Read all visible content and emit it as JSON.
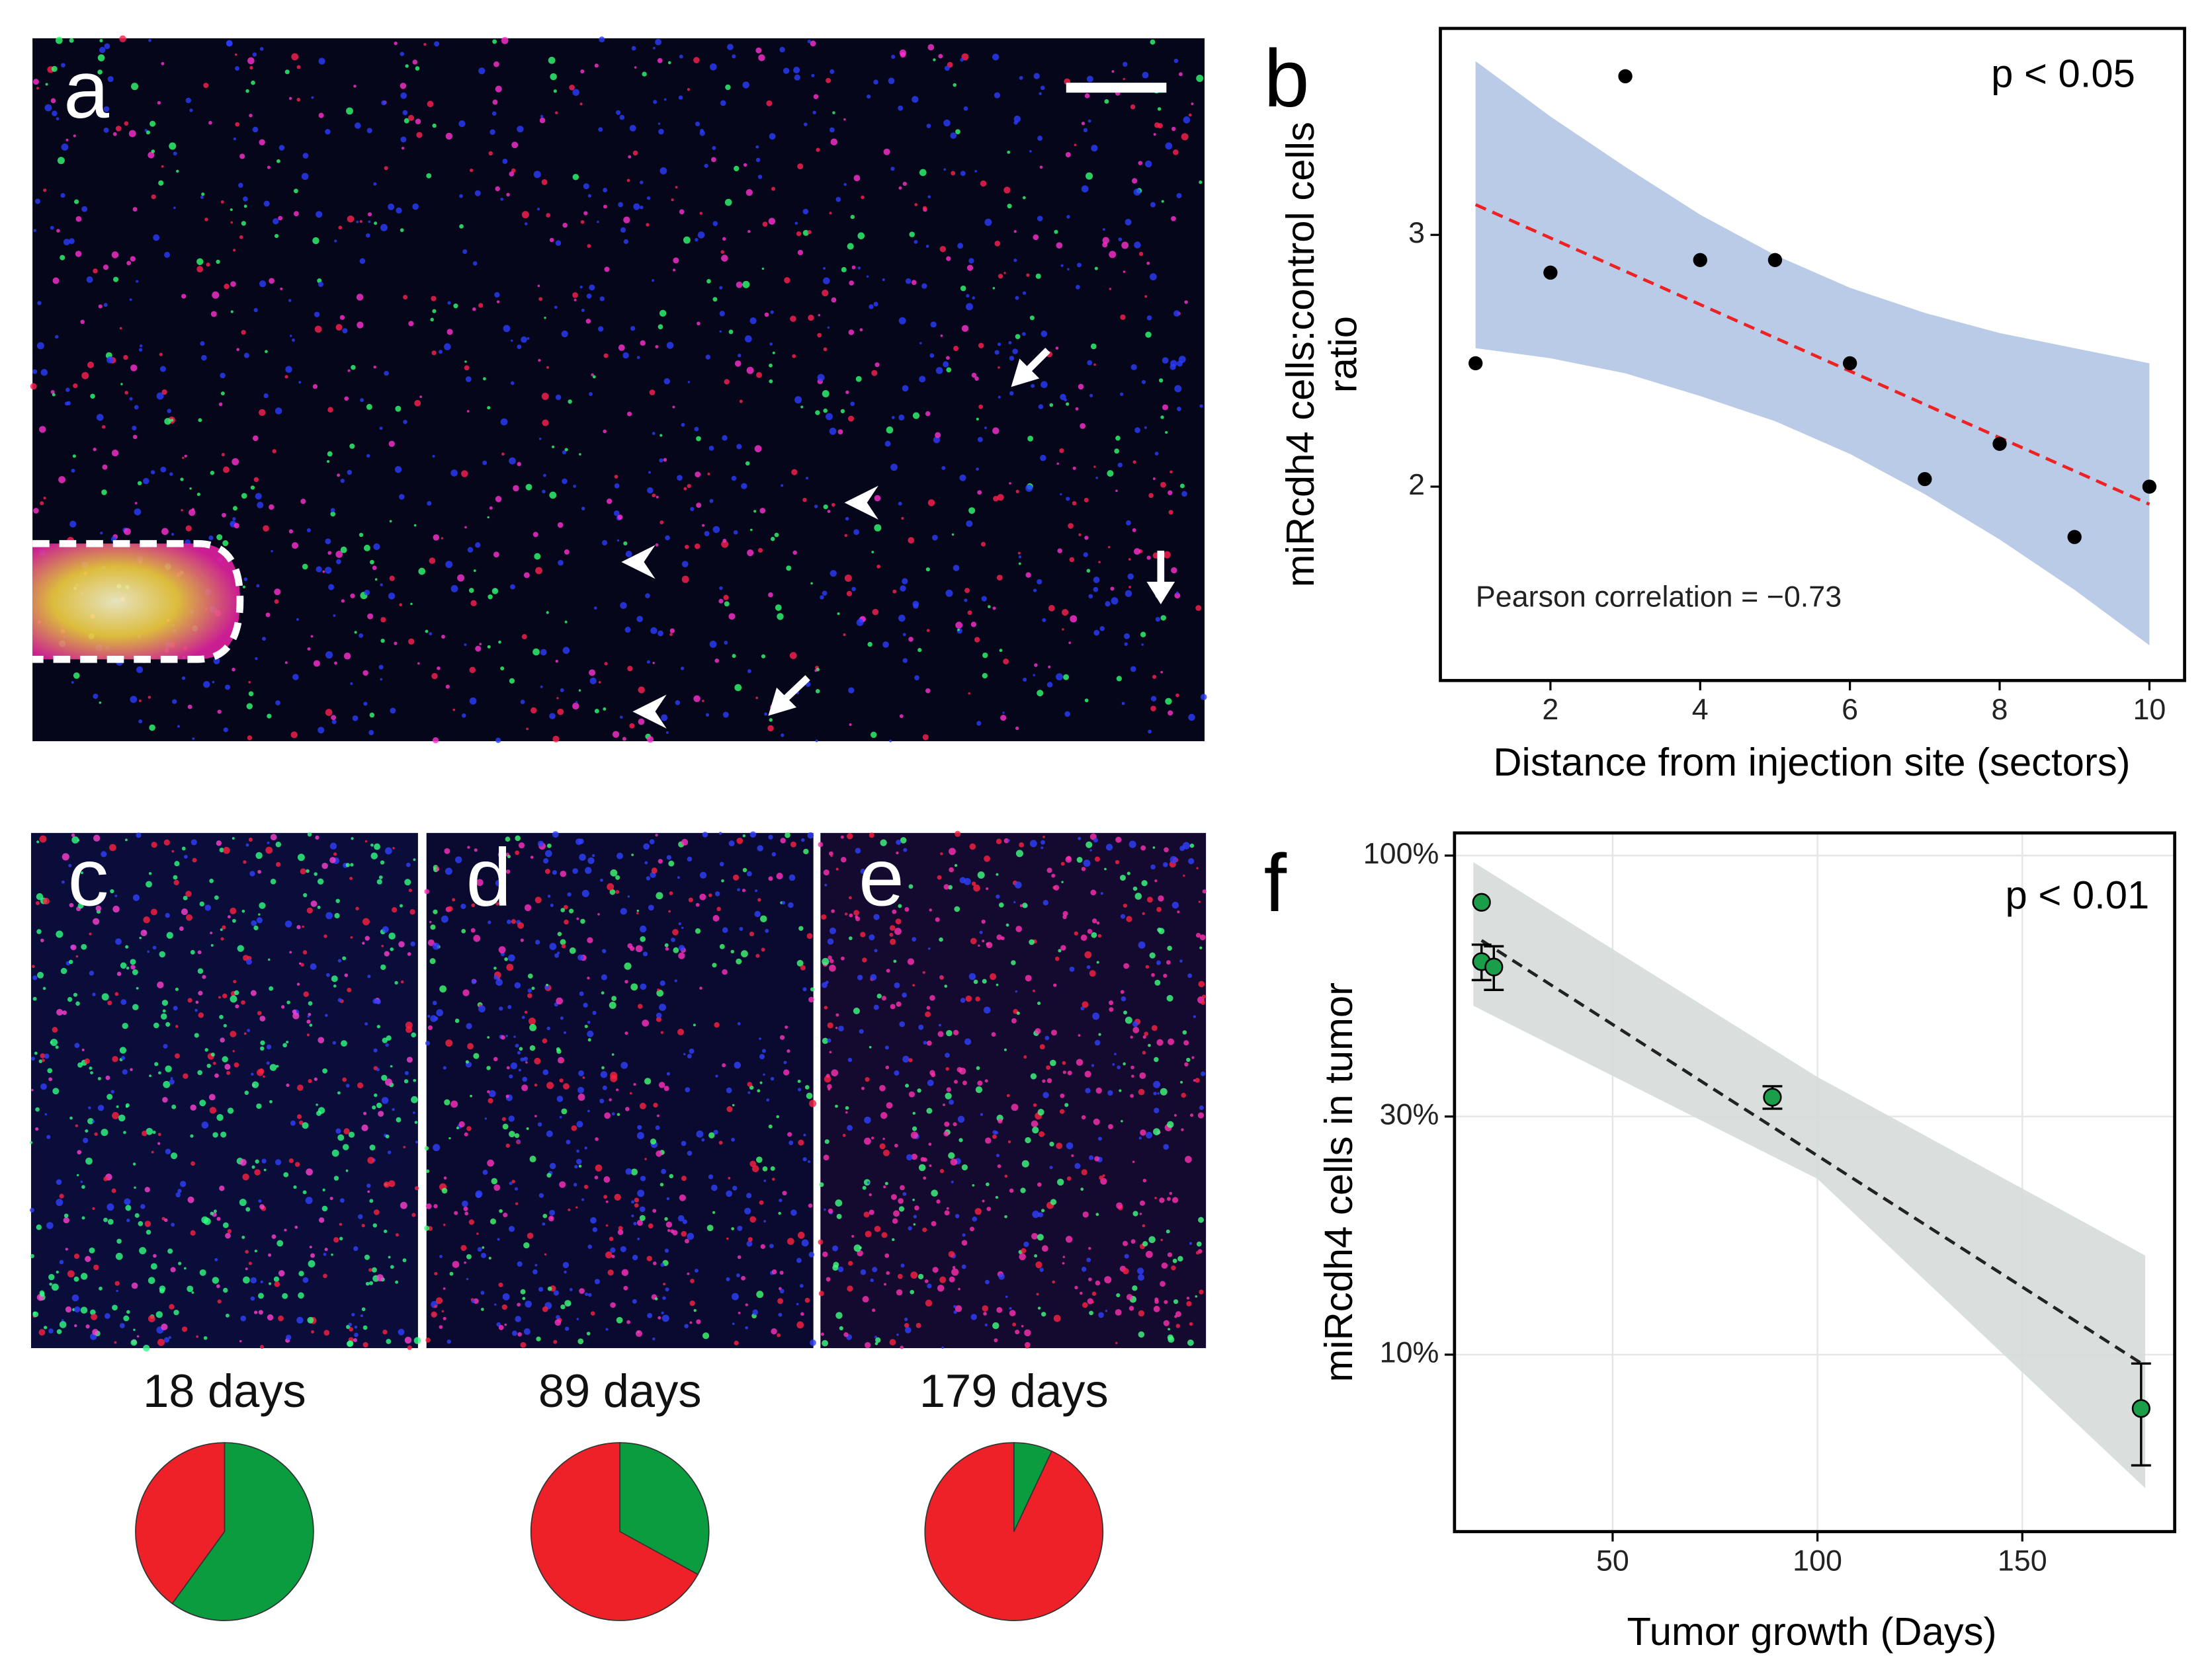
{
  "micrographs": [
    {
      "label": "a"
    },
    {
      "label": "c"
    },
    {
      "label": "d"
    },
    {
      "label": "e"
    }
  ],
  "chart_data": [
    {
      "type": "scatter",
      "panel_label": "b",
      "annotation": "p < 0.05",
      "stat_label": "Pearson correlation =  −0.73",
      "ylabel": [
        "miRcdh4 cells:control cells",
        "ratio"
      ],
      "xlabel": "Distance from injection site (sectors)",
      "x": [
        1,
        2,
        3,
        4,
        5,
        6,
        7,
        8,
        9,
        10
      ],
      "series": [
        {
          "color": "#000000",
          "values": [
            2.49,
            2.85,
            3.63,
            2.9,
            2.9,
            2.49,
            2.03,
            2.17,
            1.8,
            2.0
          ]
        }
      ],
      "fit": {
        "color": "#ee2222",
        "x": [
          1,
          10
        ],
        "values": [
          3.12,
          1.93
        ]
      },
      "band": {
        "color": "#b2c5e5",
        "x": [
          1,
          2,
          3,
          4,
          5,
          6,
          7,
          8,
          9,
          10
        ],
        "upper": [
          3.69,
          3.47,
          3.27,
          3.08,
          2.92,
          2.79,
          2.69,
          2.61,
          2.55,
          2.49
        ],
        "lower": [
          2.55,
          2.51,
          2.45,
          2.36,
          2.26,
          2.13,
          1.97,
          1.79,
          1.59,
          1.37
        ]
      },
      "xlim": [
        0.53,
        10.47
      ],
      "ylim": [
        1.23,
        3.82
      ],
      "xticks": [
        2,
        4,
        6,
        8,
        10
      ],
      "yticks": [
        2,
        3
      ],
      "grid": false
    },
    {
      "type": "pie",
      "title": "18 days",
      "values": [
        60,
        40
      ],
      "colors": [
        "#0a9c3f",
        "#ee2028"
      ]
    },
    {
      "type": "pie",
      "title": "89 days",
      "values": [
        33,
        67
      ],
      "colors": [
        "#0a9c3f",
        "#ee2028"
      ]
    },
    {
      "type": "pie",
      "title": "179 days",
      "values": [
        7,
        93
      ],
      "colors": [
        "#0a9c3f",
        "#ee2028"
      ]
    },
    {
      "type": "scatter",
      "panel_label": "f",
      "annotation": "p < 0.01",
      "ylabel": [
        "miRcdh4 cells in tumor"
      ],
      "xlabel": "Tumor growth (Days)",
      "yscale": "log",
      "x": [
        18,
        18,
        21,
        89,
        179
      ],
      "series": [
        {
          "color": "#1a9e4a",
          "values": [
            80.6,
            61.3,
            59.8,
            32.8,
            7.8
          ],
          "errors": [
            null,
            5,
            6,
            1.7,
            1.8
          ]
        }
      ],
      "fit": {
        "color": "#222222",
        "x": [
          18,
          180
        ],
        "values": [
          67.6,
          9.5
        ]
      },
      "band": {
        "color": "#d6dbd9",
        "x": [
          16,
          100,
          180
        ],
        "upper": [
          97,
          36,
          15.8
        ],
        "lower": [
          50,
          22.5,
          5.4
        ]
      },
      "xlim": [
        11.4,
        187.2
      ],
      "ylim": [
        4.42,
        111
      ],
      "xticks": [
        50,
        100,
        150
      ],
      "yticks": [
        {
          "value": 10,
          "label": "10%"
        },
        {
          "value": 30,
          "label": "30%"
        },
        {
          "value": 100,
          "label": "100%"
        }
      ],
      "grid": true
    }
  ]
}
